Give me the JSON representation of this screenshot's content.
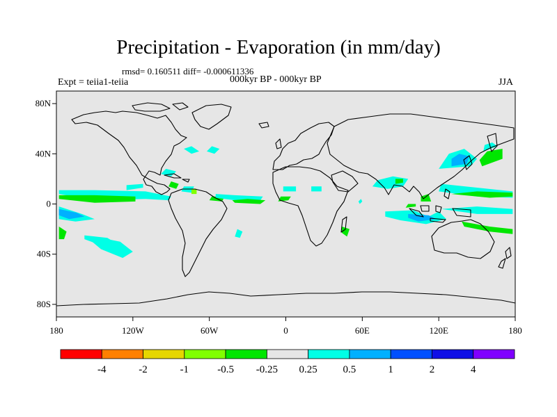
{
  "header": {
    "title": "Precipitation - Evaporation (in mm/day)",
    "stats": "rmsd= 0.160511 diff= -0.000611336",
    "period": "000kyr BP - 000kyr BP",
    "experiment": "Expt = teiia1-teiia",
    "season": "JJA"
  },
  "map": {
    "lon_range": [
      -180,
      180
    ],
    "lat_range": [
      -90,
      90
    ],
    "background_color": "#e6e6e6",
    "lat_ticks": [
      {
        "lat": 80,
        "label": "80N"
      },
      {
        "lat": 40,
        "label": "40N"
      },
      {
        "lat": 0,
        "label": "0"
      },
      {
        "lat": -40,
        "label": "40S"
      },
      {
        "lat": -80,
        "label": "80S"
      }
    ],
    "lon_ticks": [
      {
        "lon": -180,
        "label": "180"
      },
      {
        "lon": -120,
        "label": "120W"
      },
      {
        "lon": -60,
        "label": "60W"
      },
      {
        "lon": 0,
        "label": "0"
      },
      {
        "lon": 60,
        "label": "60E"
      },
      {
        "lon": 120,
        "label": "120E"
      },
      {
        "lon": 180,
        "label": "180"
      }
    ]
  },
  "colorbar": {
    "colors": [
      "#ff0000",
      "#ff8000",
      "#e6d600",
      "#80ff00",
      "#00e600",
      "#e6e6e6",
      "#00ffe6",
      "#00b0ff",
      "#0050ff",
      "#1010e6",
      "#8000ff"
    ],
    "labels": [
      "-4",
      "-2",
      "-1",
      "-0.5",
      "-0.25",
      "0.25",
      "0.5",
      "1",
      "2",
      "4"
    ]
  },
  "anomalies": [
    {
      "c": "#00ffe6",
      "pts": [
        [
          -178,
          8
        ],
        [
          -150,
          3
        ],
        [
          -110,
          4
        ],
        [
          -92,
          3
        ],
        [
          -90,
          6
        ],
        [
          -110,
          10
        ],
        [
          -150,
          11
        ],
        [
          -178,
          11
        ]
      ]
    },
    {
      "c": "#00e600",
      "pts": [
        [
          -178,
          4
        ],
        [
          -150,
          1
        ],
        [
          -118,
          2
        ],
        [
          -118,
          6
        ],
        [
          -150,
          7
        ],
        [
          -178,
          7
        ]
      ]
    },
    {
      "c": "#00ffe6",
      "pts": [
        [
          -178,
          -2
        ],
        [
          -160,
          -8
        ],
        [
          -150,
          -12
        ],
        [
          -165,
          -14
        ],
        [
          -178,
          -12
        ]
      ]
    },
    {
      "c": "#00b0ff",
      "pts": [
        [
          -178,
          -4
        ],
        [
          -164,
          -7
        ],
        [
          -158,
          -10
        ],
        [
          -170,
          -12
        ],
        [
          -178,
          -9
        ]
      ]
    },
    {
      "c": "#00e600",
      "pts": [
        [
          -178,
          -18
        ],
        [
          -172,
          -22
        ],
        [
          -174,
          -28
        ],
        [
          -178,
          -28
        ]
      ]
    },
    {
      "c": "#00ffe6",
      "pts": [
        [
          -150,
          -26
        ],
        [
          -130,
          -30
        ],
        [
          -120,
          -38
        ],
        [
          -128,
          -43
        ],
        [
          -145,
          -36
        ],
        [
          -152,
          -30
        ]
      ]
    },
    {
      "c": "#00ffe6",
      "pts": [
        [
          -158,
          -25
        ],
        [
          -140,
          -27
        ],
        [
          -135,
          -30
        ],
        [
          -150,
          -31
        ],
        [
          -158,
          -28
        ]
      ]
    },
    {
      "c": "#00ffe6",
      "pts": [
        [
          -125,
          11
        ],
        [
          -112,
          13
        ],
        [
          -112,
          16
        ],
        [
          -125,
          15
        ]
      ]
    },
    {
      "c": "#00ffe6",
      "pts": [
        [
          -82,
          10
        ],
        [
          -74,
          9
        ],
        [
          -72,
          14
        ],
        [
          -80,
          14
        ]
      ]
    },
    {
      "c": "#80ff00",
      "pts": [
        [
          -74,
          8
        ],
        [
          -70,
          8
        ],
        [
          -70,
          12
        ],
        [
          -74,
          12
        ]
      ]
    },
    {
      "c": "#00e600",
      "pts": [
        [
          -60,
          3
        ],
        [
          -50,
          2
        ],
        [
          -48,
          6
        ],
        [
          -58,
          6
        ]
      ]
    },
    {
      "c": "#00ffe6",
      "pts": [
        [
          -55,
          5
        ],
        [
          -40,
          3
        ],
        [
          -20,
          3
        ],
        [
          -18,
          6
        ],
        [
          -40,
          7
        ],
        [
          -55,
          8
        ]
      ]
    },
    {
      "c": "#00e600",
      "pts": [
        [
          -40,
          1
        ],
        [
          -20,
          0
        ],
        [
          -16,
          3
        ],
        [
          -30,
          4
        ],
        [
          -42,
          3
        ]
      ]
    },
    {
      "c": "#00e600",
      "pts": [
        [
          -6,
          2
        ],
        [
          2,
          3
        ],
        [
          4,
          6
        ],
        [
          -4,
          6
        ]
      ]
    },
    {
      "c": "#00ffe6",
      "pts": [
        [
          -2,
          10
        ],
        [
          8,
          10
        ],
        [
          8,
          14
        ],
        [
          -2,
          14
        ]
      ]
    },
    {
      "c": "#00ffe6",
      "pts": [
        [
          20,
          10
        ],
        [
          28,
          10
        ],
        [
          28,
          14
        ],
        [
          20,
          14
        ]
      ]
    },
    {
      "c": "#00e600",
      "pts": [
        [
          44,
          -18
        ],
        [
          50,
          -20
        ],
        [
          48,
          -26
        ],
        [
          44,
          -23
        ]
      ]
    },
    {
      "c": "#00ffe6",
      "pts": [
        [
          58,
          0
        ],
        [
          60,
          2
        ],
        [
          59,
          4
        ],
        [
          57,
          2
        ]
      ]
    },
    {
      "c": "#00ffe6",
      "pts": [
        [
          -38,
          -20
        ],
        [
          -34,
          -22
        ],
        [
          -36,
          -27
        ],
        [
          -40,
          -26
        ]
      ]
    },
    {
      "c": "#00ffe6",
      "pts": [
        [
          68,
          14
        ],
        [
          80,
          12
        ],
        [
          92,
          14
        ],
        [
          96,
          20
        ],
        [
          84,
          22
        ],
        [
          72,
          19
        ]
      ]
    },
    {
      "c": "#00e600",
      "pts": [
        [
          86,
          16
        ],
        [
          92,
          17
        ],
        [
          92,
          20
        ],
        [
          86,
          20
        ]
      ]
    },
    {
      "c": "#00ffe6",
      "pts": [
        [
          78,
          -6
        ],
        [
          100,
          -5
        ],
        [
          112,
          -10
        ],
        [
          120,
          -6
        ],
        [
          126,
          -12
        ],
        [
          110,
          -16
        ],
        [
          90,
          -13
        ],
        [
          78,
          -10
        ]
      ]
    },
    {
      "c": "#00b0ff",
      "pts": [
        [
          96,
          -8
        ],
        [
          112,
          -9
        ],
        [
          118,
          -12
        ],
        [
          104,
          -14
        ],
        [
          96,
          -11
        ]
      ]
    },
    {
      "c": "#00e600",
      "pts": [
        [
          94,
          -3
        ],
        [
          102,
          -2
        ],
        [
          102,
          0
        ],
        [
          96,
          0
        ]
      ]
    },
    {
      "c": "#00e600",
      "pts": [
        [
          106,
          2
        ],
        [
          114,
          2
        ],
        [
          112,
          8
        ],
        [
          106,
          6
        ]
      ]
    },
    {
      "c": "#00ffe6",
      "pts": [
        [
          120,
          10
        ],
        [
          150,
          6
        ],
        [
          178,
          5
        ],
        [
          178,
          10
        ],
        [
          150,
          13
        ],
        [
          122,
          16
        ]
      ]
    },
    {
      "c": "#00e600",
      "pts": [
        [
          130,
          8
        ],
        [
          160,
          5
        ],
        [
          178,
          6
        ],
        [
          178,
          9
        ],
        [
          150,
          10
        ]
      ]
    },
    {
      "c": "#00ffe6",
      "pts": [
        [
          120,
          28
        ],
        [
          145,
          30
        ],
        [
          150,
          36
        ],
        [
          140,
          44
        ],
        [
          128,
          40
        ]
      ]
    },
    {
      "c": "#00b0ff",
      "pts": [
        [
          130,
          30
        ],
        [
          142,
          32
        ],
        [
          144,
          38
        ],
        [
          136,
          40
        ],
        [
          130,
          36
        ]
      ]
    },
    {
      "c": "#00e600",
      "pts": [
        [
          154,
          30
        ],
        [
          170,
          36
        ],
        [
          170,
          44
        ],
        [
          158,
          42
        ],
        [
          152,
          35
        ]
      ]
    },
    {
      "c": "#00ffe6",
      "pts": [
        [
          155,
          42
        ],
        [
          166,
          46
        ],
        [
          162,
          49
        ],
        [
          156,
          47
        ]
      ]
    },
    {
      "c": "#00ffe6",
      "pts": [
        [
          122,
          -4
        ],
        [
          150,
          -8
        ],
        [
          178,
          -8
        ],
        [
          178,
          -4
        ],
        [
          150,
          -2
        ]
      ]
    },
    {
      "c": "#00e600",
      "pts": [
        [
          138,
          -14
        ],
        [
          160,
          -18
        ],
        [
          178,
          -20
        ],
        [
          178,
          -24
        ],
        [
          160,
          -22
        ],
        [
          140,
          -18
        ]
      ]
    },
    {
      "c": "#00ffe6",
      "pts": [
        [
          -80,
          44
        ],
        [
          -74,
          40
        ],
        [
          -68,
          42
        ],
        [
          -74,
          46
        ]
      ]
    },
    {
      "c": "#00ffe6",
      "pts": [
        [
          -62,
          42
        ],
        [
          -56,
          40
        ],
        [
          -52,
          44
        ],
        [
          -58,
          46
        ]
      ]
    },
    {
      "c": "#00ffe6",
      "pts": [
        [
          -98,
          24
        ],
        [
          -90,
          22
        ],
        [
          -86,
          26
        ],
        [
          -94,
          28
        ]
      ]
    },
    {
      "c": "#00e600",
      "pts": [
        [
          -92,
          14
        ],
        [
          -86,
          12
        ],
        [
          -84,
          16
        ],
        [
          -90,
          18
        ]
      ]
    }
  ]
}
